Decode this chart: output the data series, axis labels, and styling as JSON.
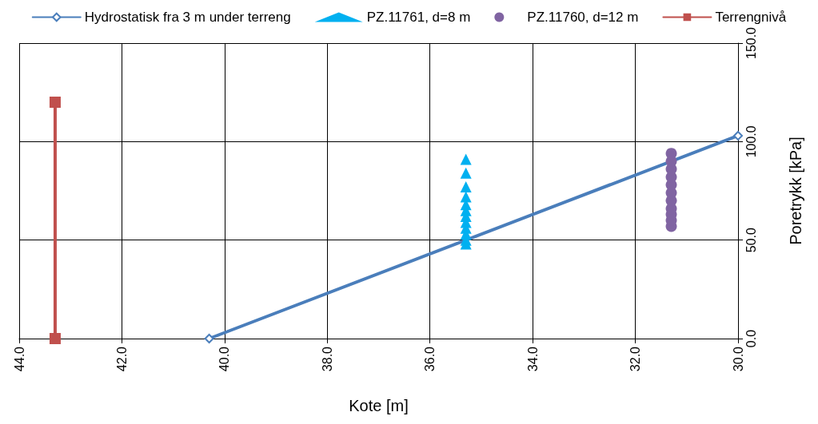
{
  "chart_data": {
    "type": "line",
    "xlabel": "Kote [m]",
    "ylabel": "Poretrykk [kPa]",
    "xlim": [
      44,
      30
    ],
    "xticks": [
      {
        "value": 44,
        "label": "44.0"
      },
      {
        "value": 42,
        "label": "42.0"
      },
      {
        "value": 40,
        "label": "40.0"
      },
      {
        "value": 38,
        "label": "38.0"
      },
      {
        "value": 36,
        "label": "36.0"
      },
      {
        "value": 34,
        "label": "34.0"
      },
      {
        "value": 32,
        "label": "32.0"
      },
      {
        "value": 30,
        "label": "30.0"
      }
    ],
    "ylim": [
      0,
      150
    ],
    "yticks": [
      {
        "value": 0,
        "label": "0.0"
      },
      {
        "value": 50,
        "label": "50.0"
      },
      {
        "value": 100,
        "label": "100.0"
      },
      {
        "value": 150,
        "label": "150.0"
      }
    ],
    "grid": true,
    "legend": "top",
    "line_style": "solid",
    "series": [
      {
        "name": "Hydrostatisk fra 3 m under terreng",
        "color": "#4a7ebb",
        "marker": "diamond",
        "x": [
          40.3,
          30
        ],
        "values": [
          0,
          103
        ]
      },
      {
        "name": "PZ.11761, d=8 m",
        "type": "scatter",
        "color": "#00b0f0",
        "marker": "triangle",
        "x": [
          35.3,
          35.3,
          35.3,
          35.3,
          35.3,
          35.3,
          35.3,
          35.3,
          35.3,
          35.3,
          35.3,
          35.3
        ],
        "values": [
          48,
          50,
          53,
          56,
          59,
          62,
          65,
          68,
          72,
          77,
          84,
          91
        ]
      },
      {
        "name": "PZ.11760, d=12 m",
        "type": "scatter",
        "color": "#8064a2",
        "marker": "circle",
        "x": [
          31.3,
          31.3,
          31.3,
          31.3,
          31.3,
          31.3,
          31.3,
          31.3,
          31.3,
          31.3,
          31.3
        ],
        "values": [
          57,
          60,
          63,
          66,
          70,
          74,
          78,
          82,
          86,
          90,
          94
        ]
      },
      {
        "name": "Terrengnivå",
        "color": "#c0504d",
        "marker": "square",
        "x": [
          43.3,
          43.3
        ],
        "values": [
          0,
          120
        ]
      }
    ]
  }
}
